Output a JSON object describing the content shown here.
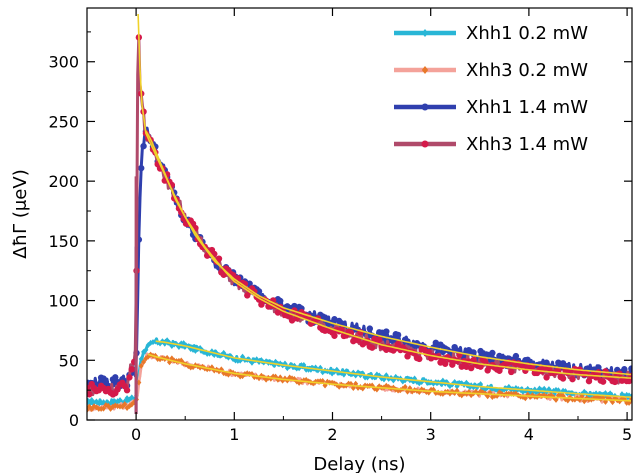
{
  "chart_data": {
    "type": "line",
    "xlabel": "Delay (ns)",
    "ylabel": "ΔħΓ (μeV)",
    "xlim": [
      -0.5,
      5.05
    ],
    "ylim": [
      0,
      345
    ],
    "x_ticks": [
      0,
      1,
      2,
      3,
      4,
      5
    ],
    "x_tick_labels": [
      "0",
      "1",
      "2",
      "3",
      "4",
      "5"
    ],
    "y_ticks": [
      0,
      50,
      100,
      150,
      200,
      250,
      300
    ],
    "y_tick_labels": [
      "0",
      "50",
      "100",
      "150",
      "200",
      "250",
      "300"
    ],
    "grid": false,
    "legend_position": "top-right",
    "series": [
      {
        "name": "Xhh1 0.2 mW",
        "color": "#29b6d6",
        "marker": "diamond",
        "baseline": 15,
        "peak_x": 0.2,
        "peak_y": 66,
        "points": [
          [
            -0.5,
            15
          ],
          [
            -0.3,
            15
          ],
          [
            -0.1,
            16
          ],
          [
            0.0,
            18
          ],
          [
            0.05,
            52
          ],
          [
            0.1,
            60
          ],
          [
            0.2,
            66
          ],
          [
            0.3,
            65
          ],
          [
            0.5,
            62
          ],
          [
            0.75,
            57
          ],
          [
            1.0,
            52
          ],
          [
            1.5,
            46
          ],
          [
            2.0,
            41
          ],
          [
            2.5,
            36
          ],
          [
            3.0,
            32
          ],
          [
            3.5,
            28
          ],
          [
            4.0,
            25
          ],
          [
            4.5,
            22
          ],
          [
            5.05,
            19
          ]
        ]
      },
      {
        "name": "Xhh3 0.2 mW",
        "color": "#f4a29a",
        "marker": "diamond",
        "marker_color": "#e8782a",
        "baseline": 12,
        "peak_x": 0.12,
        "peak_y": 55,
        "points": [
          [
            -0.5,
            10
          ],
          [
            -0.3,
            11
          ],
          [
            -0.1,
            12
          ],
          [
            0.0,
            15
          ],
          [
            0.05,
            45
          ],
          [
            0.12,
            55
          ],
          [
            0.2,
            53
          ],
          [
            0.35,
            50
          ],
          [
            0.5,
            47
          ],
          [
            0.75,
            43
          ],
          [
            1.0,
            39
          ],
          [
            1.5,
            34
          ],
          [
            2.0,
            30
          ],
          [
            2.5,
            27
          ],
          [
            3.0,
            24
          ],
          [
            3.5,
            22
          ],
          [
            4.0,
            20
          ],
          [
            4.5,
            18
          ],
          [
            5.05,
            16
          ]
        ]
      },
      {
        "name": "Xhh1 1.4 mW",
        "color": "#2f3fae",
        "marker": "circle",
        "baseline": 30,
        "peak_x": 0.1,
        "peak_y": 242,
        "points": [
          [
            -0.5,
            30
          ],
          [
            -0.3,
            31
          ],
          [
            -0.1,
            33
          ],
          [
            0.0,
            40
          ],
          [
            0.03,
            160
          ],
          [
            0.06,
            225
          ],
          [
            0.1,
            242
          ],
          [
            0.15,
            235
          ],
          [
            0.25,
            215
          ],
          [
            0.4,
            185
          ],
          [
            0.6,
            155
          ],
          [
            0.8,
            133
          ],
          [
            1.0,
            118
          ],
          [
            1.25,
            104
          ],
          [
            1.5,
            94
          ],
          [
            2.0,
            81
          ],
          [
            2.5,
            70
          ],
          [
            3.0,
            61
          ],
          [
            3.5,
            53
          ],
          [
            4.0,
            47
          ],
          [
            4.5,
            42
          ],
          [
            5.05,
            38
          ]
        ]
      },
      {
        "name": "Xhh3 1.4 mW",
        "color": "#b04a6a",
        "marker": "circle",
        "marker_color": "#d41a4a",
        "baseline": 26,
        "peak_x": 0.02,
        "peak_y": 340,
        "points": [
          [
            -0.5,
            26
          ],
          [
            -0.3,
            26
          ],
          [
            -0.1,
            27
          ],
          [
            0.0,
            60
          ],
          [
            0.02,
            340
          ],
          [
            0.05,
            270
          ],
          [
            0.1,
            240
          ],
          [
            0.2,
            222
          ],
          [
            0.35,
            195
          ],
          [
            0.5,
            170
          ],
          [
            0.7,
            145
          ],
          [
            0.9,
            125
          ],
          [
            1.0,
            116
          ],
          [
            1.25,
            102
          ],
          [
            1.5,
            91
          ],
          [
            2.0,
            76
          ],
          [
            2.5,
            63
          ],
          [
            3.0,
            54
          ],
          [
            3.5,
            47
          ],
          [
            4.0,
            42
          ],
          [
            4.5,
            38
          ],
          [
            5.05,
            35
          ]
        ]
      }
    ],
    "fit_color": "#f0d22a"
  }
}
